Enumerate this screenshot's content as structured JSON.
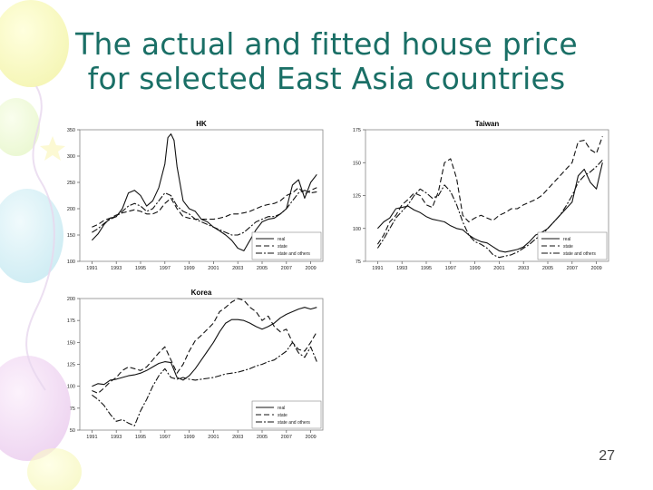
{
  "slide": {
    "title_line1": "The actual and fitted house price",
    "title_line2": "for selected East Asia countries",
    "page_number": "27"
  },
  "chart_data": [
    {
      "type": "line",
      "title": "HK",
      "xlim": [
        1990,
        2010
      ],
      "ylim": [
        100,
        350
      ],
      "x_ticks": [
        1991,
        1993,
        1995,
        1997,
        1999,
        2001,
        2003,
        2005,
        2007,
        2009
      ],
      "y_ticks": [
        100,
        150,
        200,
        250,
        300,
        350
      ],
      "legend": "bottom-right",
      "series": [
        {
          "name": "real",
          "style": "solid",
          "x": [
            1991,
            1991.5,
            1992,
            1992.5,
            1993,
            1993.5,
            1994,
            1994.5,
            1995,
            1995.5,
            1996,
            1996.5,
            1997,
            1997.25,
            1997.5,
            1997.75,
            1998,
            1998.5,
            1999,
            1999.5,
            2000,
            2000.5,
            2001,
            2001.5,
            2002,
            2002.5,
            2003,
            2003.5,
            2004,
            2004.5,
            2005,
            2005.5,
            2006,
            2006.5,
            2007,
            2007.5,
            2008,
            2008.5,
            2009,
            2009.5
          ],
          "y": [
            140,
            152,
            170,
            182,
            185,
            200,
            230,
            235,
            225,
            205,
            215,
            240,
            285,
            335,
            342,
            330,
            280,
            215,
            200,
            195,
            180,
            175,
            165,
            158,
            150,
            140,
            125,
            120,
            140,
            160,
            175,
            180,
            182,
            190,
            200,
            245,
            255,
            220,
            250,
            265
          ]
        },
        {
          "name": "state",
          "style": "dashed",
          "x": [
            1991,
            1991.5,
            1992,
            1992.5,
            1993,
            1993.5,
            1994,
            1994.5,
            1995,
            1995.5,
            1996,
            1996.5,
            1997,
            1997.5,
            1998,
            1998.5,
            1999,
            1999.5,
            2000,
            2000.5,
            2001,
            2001.5,
            2002,
            2002.5,
            2003,
            2003.5,
            2004,
            2004.5,
            2005,
            2005.5,
            2006,
            2006.5,
            2007,
            2007.5,
            2008,
            2008.5,
            2009,
            2009.5
          ],
          "y": [
            165,
            170,
            178,
            182,
            188,
            192,
            195,
            198,
            195,
            190,
            190,
            195,
            210,
            220,
            200,
            185,
            182,
            180,
            180,
            180,
            180,
            182,
            185,
            190,
            190,
            192,
            195,
            200,
            205,
            208,
            210,
            215,
            225,
            230,
            240,
            228,
            235,
            240
          ]
        },
        {
          "name": "state and others",
          "style": "dashdot",
          "x": [
            1991,
            1991.5,
            1992,
            1992.5,
            1993,
            1993.5,
            1994,
            1994.5,
            1995,
            1995.5,
            1996,
            1996.5,
            1997,
            1997.5,
            1998,
            1998.5,
            1999,
            1999.5,
            2000,
            2000.5,
            2001,
            2001.5,
            2002,
            2002.5,
            2003,
            2003.5,
            2004,
            2004.5,
            2005,
            2005.5,
            2006,
            2006.5,
            2007,
            2007.5,
            2008,
            2008.5,
            2009,
            2009.5
          ],
          "y": [
            155,
            162,
            172,
            180,
            185,
            195,
            205,
            210,
            205,
            195,
            200,
            215,
            230,
            225,
            205,
            195,
            190,
            180,
            175,
            170,
            165,
            160,
            155,
            150,
            150,
            155,
            165,
            175,
            180,
            185,
            185,
            190,
            200,
            215,
            230,
            235,
            230,
            232
          ]
        }
      ]
    },
    {
      "type": "line",
      "title": "Taiwan",
      "xlim": [
        1990,
        2010
      ],
      "ylim": [
        75,
        175
      ],
      "x_ticks": [
        1991,
        1993,
        1995,
        1997,
        1999,
        2001,
        2003,
        2005,
        2007,
        2009
      ],
      "y_ticks": [
        75,
        100,
        125,
        150,
        175
      ],
      "legend": "bottom-right",
      "series": [
        {
          "name": "real",
          "style": "solid",
          "x": [
            1991,
            1991.5,
            1992,
            1992.5,
            1993,
            1993.5,
            1994,
            1994.5,
            1995,
            1995.5,
            1996,
            1996.5,
            1997,
            1997.5,
            1998,
            1998.5,
            1999,
            1999.5,
            2000,
            2000.5,
            2001,
            2001.5,
            2002,
            2002.5,
            2003,
            2003.5,
            2004,
            2004.5,
            2005,
            2005.5,
            2006,
            2006.5,
            2007,
            2007.5,
            2008,
            2008.5,
            2009,
            2009.5
          ],
          "y": [
            100,
            105,
            108,
            115,
            116,
            117,
            114,
            112,
            109,
            107,
            106,
            105,
            102,
            100,
            99,
            95,
            92,
            90,
            89,
            86,
            83,
            82,
            83,
            84,
            86,
            90,
            95,
            97,
            100,
            105,
            110,
            115,
            120,
            140,
            145,
            135,
            130,
            150
          ]
        },
        {
          "name": "state",
          "style": "dashed",
          "x": [
            1991,
            1991.5,
            1992,
            1992.5,
            1993,
            1993.5,
            1994,
            1994.5,
            1995,
            1995.5,
            1996,
            1996.5,
            1997,
            1997.5,
            1998,
            1998.5,
            1999,
            1999.5,
            2000,
            2000.5,
            2001,
            2001.5,
            2002,
            2002.5,
            2003,
            2003.5,
            2004,
            2004.5,
            2005,
            2005.5,
            2006,
            2006.5,
            2007,
            2007.5,
            2008,
            2008.5,
            2009,
            2009.5
          ],
          "y": [
            88,
            95,
            105,
            110,
            118,
            122,
            127,
            125,
            118,
            116,
            128,
            150,
            153,
            138,
            110,
            105,
            108,
            110,
            108,
            106,
            110,
            112,
            115,
            115,
            118,
            120,
            122,
            125,
            130,
            135,
            140,
            145,
            150,
            166,
            167,
            160,
            157,
            170
          ]
        },
        {
          "name": "state and others",
          "style": "dashdot",
          "x": [
            1991,
            1991.5,
            1992,
            1992.5,
            1993,
            1993.5,
            1994,
            1994.5,
            1995,
            1995.5,
            1996,
            1996.5,
            1997,
            1997.5,
            1998,
            1998.5,
            1999,
            1999.5,
            2000,
            2000.5,
            2001,
            2001.5,
            2002,
            2002.5,
            2003,
            2003.5,
            2004,
            2004.5,
            2005,
            2005.5,
            2006,
            2006.5,
            2007,
            2007.5,
            2008,
            2008.5,
            2009,
            2009.5
          ],
          "y": [
            85,
            92,
            100,
            108,
            113,
            118,
            125,
            130,
            127,
            123,
            125,
            133,
            128,
            118,
            105,
            95,
            90,
            88,
            85,
            80,
            78,
            79,
            80,
            82,
            85,
            88,
            92,
            95,
            100,
            105,
            110,
            117,
            125,
            135,
            140,
            143,
            147,
            152
          ]
        }
      ]
    },
    {
      "type": "line",
      "title": "Korea",
      "xlim": [
        1990,
        2010
      ],
      "ylim": [
        50,
        200
      ],
      "x_ticks": [
        1991,
        1993,
        1995,
        1997,
        1999,
        2001,
        2003,
        2005,
        2007,
        2009
      ],
      "y_ticks": [
        50,
        75,
        100,
        125,
        150,
        175,
        200
      ],
      "legend": "bottom-right",
      "series": [
        {
          "name": "real",
          "style": "solid",
          "x": [
            1991,
            1991.5,
            1992,
            1992.5,
            1993,
            1993.5,
            1994,
            1994.5,
            1995,
            1995.5,
            1996,
            1996.5,
            1997,
            1997.5,
            1998,
            1998.5,
            1999,
            1999.5,
            2000,
            2000.5,
            2001,
            2001.5,
            2002,
            2002.5,
            2003,
            2003.5,
            2004,
            2004.5,
            2005,
            2005.5,
            2006,
            2006.5,
            2007,
            2007.5,
            2008,
            2008.5,
            2009,
            2009.5
          ],
          "y": [
            100,
            103,
            102,
            107,
            108,
            110,
            112,
            113,
            115,
            118,
            122,
            126,
            128,
            127,
            110,
            107,
            112,
            120,
            130,
            140,
            150,
            162,
            172,
            176,
            176,
            175,
            172,
            168,
            165,
            168,
            172,
            178,
            182,
            185,
            188,
            190,
            188,
            190
          ]
        },
        {
          "name": "state",
          "style": "dashed",
          "x": [
            1991,
            1991.5,
            1992,
            1992.5,
            1993,
            1993.5,
            1994,
            1994.5,
            1995,
            1995.5,
            1996,
            1996.5,
            1997,
            1997.5,
            1998,
            1998.5,
            1999,
            1999.5,
            2000,
            2000.5,
            2001,
            2001.5,
            2002,
            2002.5,
            2003,
            2003.5,
            2004,
            2004.5,
            2005,
            2005.5,
            2006,
            2006.5,
            2007,
            2007.5,
            2008,
            2008.5,
            2009,
            2009.5
          ],
          "y": [
            95,
            92,
            98,
            105,
            110,
            118,
            122,
            120,
            118,
            122,
            130,
            138,
            145,
            130,
            115,
            125,
            140,
            152,
            158,
            165,
            172,
            185,
            190,
            196,
            200,
            198,
            190,
            185,
            175,
            180,
            168,
            162,
            165,
            150,
            142,
            140,
            150,
            162
          ]
        },
        {
          "name": "state and others",
          "style": "dashdot",
          "x": [
            1991,
            1991.5,
            1992,
            1992.5,
            1993,
            1993.5,
            1994,
            1994.5,
            1995,
            1995.5,
            1996,
            1996.5,
            1997,
            1997.5,
            1998,
            1998.5,
            1999,
            1999.5,
            2000,
            2000.5,
            2001,
            2001.5,
            2002,
            2002.5,
            2003,
            2003.5,
            2004,
            2004.5,
            2005,
            2005.5,
            2006,
            2006.5,
            2007,
            2007.5,
            2008,
            2008.5,
            2009,
            2009.5
          ],
          "y": [
            90,
            85,
            78,
            68,
            60,
            62,
            58,
            55,
            72,
            85,
            100,
            112,
            120,
            110,
            108,
            110,
            108,
            107,
            108,
            109,
            110,
            112,
            114,
            115,
            116,
            118,
            120,
            123,
            125,
            128,
            130,
            135,
            140,
            150,
            138,
            133,
            145,
            128
          ]
        }
      ]
    }
  ]
}
